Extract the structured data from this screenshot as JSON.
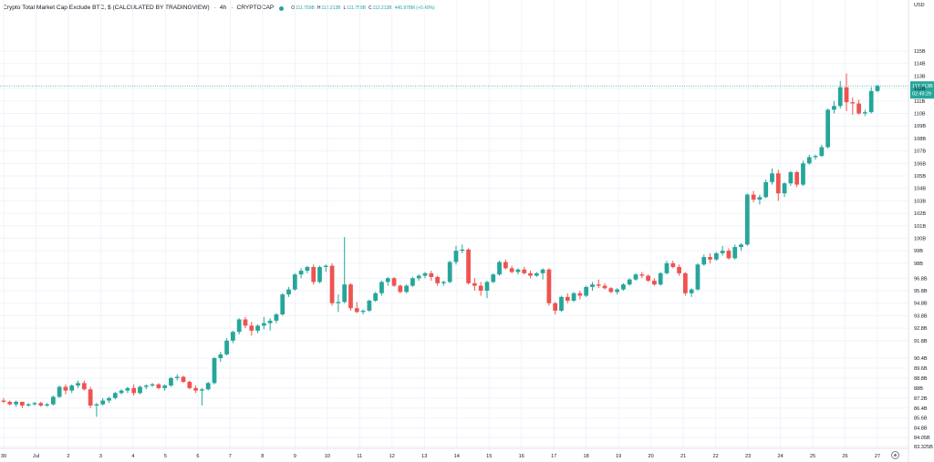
{
  "header": {
    "title": "Crypto Total Market Cap Exclude BTC, $ (CALCULATED BY TRADINGVIEW)",
    "timeframe": "4h",
    "exchange": "CRYPTOCAP",
    "ohlc": {
      "open_label": "O",
      "open": "111.759B",
      "high_label": "H",
      "high": "112.213B",
      "low_label": "L",
      "low": "111.759B",
      "close_label": "C",
      "close": "112.213B",
      "change": "445.978M (+0.40%)"
    }
  },
  "axis": {
    "currency_label": "USD"
  },
  "price_badge": {
    "price": "112.213B",
    "countdown": "02:49:29"
  },
  "colors": {
    "up": "#26a69a",
    "down": "#ef5350",
    "grid": "#f0f3fa",
    "axis_text": "#131722",
    "price_line": "#26a69a"
  },
  "chart_data": {
    "type": "candlestick",
    "timeframe": "4h",
    "y_axis": {
      "label": "USD",
      "range": [
        83.3,
        116.1
      ],
      "ticks": [
        "115B",
        "114B",
        "113B",
        "112B",
        "111B",
        "110B",
        "109B",
        "108B",
        "107B",
        "106B",
        "105B",
        "104B",
        "103B",
        "102B",
        "101B",
        "100B",
        "99B",
        "98B",
        "96.8B",
        "95.8B",
        "94.8B",
        "93.8B",
        "92.8B",
        "91.8B",
        "90.4B",
        "89.6B",
        "88.8B",
        "88B",
        "87.2B",
        "86.4B",
        "85.6B",
        "84.8B",
        "84.05B",
        "83.325B"
      ],
      "tick_values": [
        115,
        114,
        113,
        112,
        111,
        110,
        109,
        108,
        107,
        106,
        105,
        104,
        103,
        102,
        101,
        100,
        99,
        98,
        96.8,
        95.8,
        94.8,
        93.8,
        92.8,
        91.8,
        90.4,
        89.6,
        88.8,
        88,
        87.2,
        86.4,
        85.6,
        84.8,
        84.05,
        83.325
      ]
    },
    "x_axis": {
      "ticks": [
        "30",
        "Jul",
        "2",
        "3",
        "4",
        "5",
        "6",
        "7",
        "8",
        "9",
        "10",
        "11",
        "12",
        "13",
        "14",
        "15",
        "16",
        "17",
        "18",
        "19",
        "20",
        "21",
        "22",
        "23",
        "24",
        "25",
        "26",
        "27"
      ]
    },
    "last_price": 112.213,
    "countdown": "02:49:29",
    "grid": true,
    "candles": [
      [
        87.0,
        87.2,
        86.8,
        86.9
      ],
      [
        86.9,
        87.0,
        86.6,
        86.7
      ],
      [
        86.7,
        87.0,
        86.5,
        86.9
      ],
      [
        86.9,
        86.9,
        86.4,
        86.6
      ],
      [
        86.6,
        86.8,
        86.5,
        86.7
      ],
      [
        86.7,
        86.9,
        86.6,
        86.8
      ],
      [
        86.8,
        86.9,
        86.5,
        86.6
      ],
      [
        86.6,
        86.8,
        86.5,
        86.7
      ],
      [
        86.7,
        87.4,
        86.6,
        87.3
      ],
      [
        87.3,
        88.2,
        87.2,
        88.1
      ],
      [
        88.1,
        88.3,
        87.5,
        87.8
      ],
      [
        87.8,
        88.3,
        87.6,
        88.2
      ],
      [
        88.2,
        88.6,
        88.0,
        88.4
      ],
      [
        88.4,
        88.6,
        87.8,
        87.9
      ],
      [
        87.9,
        88.1,
        86.4,
        86.6
      ],
      [
        86.6,
        86.8,
        85.7,
        86.7
      ],
      [
        86.7,
        87.2,
        86.6,
        87.0
      ],
      [
        87.0,
        87.3,
        86.8,
        87.2
      ],
      [
        87.2,
        87.7,
        87.1,
        87.6
      ],
      [
        87.6,
        87.9,
        87.5,
        87.8
      ],
      [
        87.8,
        88.1,
        87.6,
        88.0
      ],
      [
        88.0,
        88.3,
        87.4,
        87.6
      ],
      [
        87.6,
        88.2,
        87.5,
        88.1
      ],
      [
        88.1,
        88.3,
        87.9,
        88.2
      ],
      [
        88.2,
        88.4,
        88.1,
        88.3
      ],
      [
        88.3,
        88.4,
        87.9,
        88.0
      ],
      [
        88.0,
        88.3,
        87.8,
        88.2
      ],
      [
        88.2,
        88.9,
        88.1,
        88.8
      ],
      [
        88.8,
        89.1,
        88.6,
        88.9
      ],
      [
        88.9,
        89.0,
        88.4,
        88.5
      ],
      [
        88.5,
        88.6,
        87.9,
        88.0
      ],
      [
        88.0,
        88.2,
        87.6,
        87.8
      ],
      [
        87.8,
        88.0,
        86.6,
        87.9
      ],
      [
        87.9,
        88.5,
        87.8,
        88.4
      ],
      [
        88.4,
        90.5,
        88.3,
        90.4
      ],
      [
        90.4,
        90.9,
        90.1,
        90.7
      ],
      [
        90.7,
        92.0,
        90.6,
        91.8
      ],
      [
        91.8,
        92.6,
        91.6,
        92.5
      ],
      [
        92.5,
        93.6,
        92.3,
        93.5
      ],
      [
        93.5,
        93.7,
        92.8,
        93.0
      ],
      [
        93.0,
        93.3,
        92.2,
        92.6
      ],
      [
        92.6,
        93.1,
        92.4,
        93.0
      ],
      [
        93.0,
        93.7,
        92.7,
        93.2
      ],
      [
        93.2,
        93.6,
        92.6,
        93.4
      ],
      [
        93.4,
        94.0,
        93.2,
        93.9
      ],
      [
        93.9,
        95.6,
        93.8,
        95.5
      ],
      [
        95.5,
        96.1,
        95.3,
        95.9
      ],
      [
        95.9,
        97.2,
        95.8,
        97.1
      ],
      [
        97.1,
        97.6,
        96.8,
        97.4
      ],
      [
        97.4,
        97.8,
        97.2,
        97.7
      ],
      [
        97.7,
        97.9,
        96.3,
        96.5
      ],
      [
        96.5,
        97.8,
        96.4,
        97.7
      ],
      [
        97.7,
        97.9,
        97.3,
        97.8
      ],
      [
        97.8,
        98.0,
        94.6,
        94.8
      ],
      [
        94.8,
        95.5,
        94.1,
        94.9
      ],
      [
        94.9,
        100.1,
        94.8,
        96.3
      ],
      [
        96.3,
        96.4,
        94.2,
        94.4
      ],
      [
        94.4,
        94.9,
        94.0,
        94.1
      ],
      [
        94.1,
        94.3,
        93.9,
        94.2
      ],
      [
        94.2,
        95.1,
        94.1,
        95.0
      ],
      [
        95.0,
        95.7,
        94.9,
        95.6
      ],
      [
        95.6,
        96.6,
        95.4,
        96.5
      ],
      [
        96.5,
        96.9,
        96.2,
        96.8
      ],
      [
        96.8,
        96.9,
        96.1,
        96.2
      ],
      [
        96.2,
        96.3,
        95.6,
        95.7
      ],
      [
        95.7,
        96.3,
        95.6,
        96.2
      ],
      [
        96.2,
        96.9,
        96.1,
        96.8
      ],
      [
        96.8,
        97.1,
        96.6,
        97.0
      ],
      [
        97.0,
        97.3,
        96.8,
        97.2
      ],
      [
        97.2,
        97.4,
        96.6,
        96.9
      ],
      [
        96.9,
        97.0,
        96.2,
        96.4
      ],
      [
        96.4,
        96.6,
        96.2,
        96.5
      ],
      [
        96.5,
        98.2,
        96.4,
        98.1
      ],
      [
        98.1,
        99.4,
        97.9,
        99.0
      ],
      [
        99.0,
        99.5,
        98.8,
        99.1
      ],
      [
        99.1,
        99.2,
        96.3,
        96.4
      ],
      [
        96.4,
        96.8,
        95.8,
        96.2
      ],
      [
        96.2,
        96.5,
        95.4,
        95.8
      ],
      [
        95.8,
        96.6,
        95.2,
        96.5
      ],
      [
        96.5,
        97.2,
        96.4,
        97.1
      ],
      [
        97.1,
        98.2,
        97.0,
        98.1
      ],
      [
        98.1,
        98.3,
        97.5,
        97.6
      ],
      [
        97.6,
        97.8,
        97.2,
        97.3
      ],
      [
        97.3,
        97.6,
        97.1,
        97.5
      ],
      [
        97.5,
        97.7,
        97.1,
        97.2
      ],
      [
        97.2,
        97.4,
        96.8,
        97.0
      ],
      [
        97.0,
        97.3,
        96.9,
        97.2
      ],
      [
        97.2,
        97.6,
        96.7,
        97.5
      ],
      [
        97.5,
        97.6,
        94.6,
        94.8
      ],
      [
        94.8,
        94.9,
        93.9,
        94.2
      ],
      [
        94.2,
        95.4,
        94.1,
        95.3
      ],
      [
        95.3,
        95.6,
        94.8,
        95.0
      ],
      [
        95.0,
        95.7,
        94.9,
        95.6
      ],
      [
        95.6,
        95.8,
        95.1,
        95.4
      ],
      [
        95.4,
        96.2,
        95.3,
        96.1
      ],
      [
        96.1,
        96.5,
        95.8,
        96.3
      ],
      [
        96.3,
        96.7,
        96.0,
        96.2
      ],
      [
        96.2,
        96.4,
        95.9,
        96.0
      ],
      [
        96.0,
        96.1,
        95.6,
        95.7
      ],
      [
        95.7,
        96.0,
        95.5,
        95.9
      ],
      [
        95.9,
        96.4,
        95.8,
        96.3
      ],
      [
        96.3,
        96.8,
        96.2,
        96.7
      ],
      [
        96.7,
        97.2,
        96.6,
        97.1
      ],
      [
        97.1,
        97.3,
        96.8,
        97.0
      ],
      [
        97.0,
        97.1,
        96.5,
        96.6
      ],
      [
        96.6,
        96.8,
        96.2,
        96.3
      ],
      [
        96.3,
        97.3,
        96.2,
        97.2
      ],
      [
        97.2,
        98.2,
        97.1,
        98.0
      ],
      [
        98.0,
        98.2,
        97.6,
        97.7
      ],
      [
        97.7,
        97.9,
        97.0,
        97.2
      ],
      [
        97.2,
        97.3,
        95.4,
        95.6
      ],
      [
        95.6,
        96.0,
        95.3,
        95.9
      ],
      [
        95.9,
        98.0,
        95.8,
        97.9
      ],
      [
        97.9,
        98.7,
        97.8,
        98.5
      ],
      [
        98.5,
        98.8,
        98.0,
        98.3
      ],
      [
        98.3,
        98.9,
        98.2,
        98.8
      ],
      [
        98.8,
        99.4,
        98.6,
        99.0
      ],
      [
        99.0,
        99.2,
        98.3,
        98.4
      ],
      [
        98.4,
        99.5,
        98.3,
        99.3
      ],
      [
        99.3,
        99.6,
        99.0,
        99.5
      ],
      [
        99.5,
        103.6,
        99.4,
        103.5
      ],
      [
        103.5,
        103.8,
        102.9,
        103.1
      ],
      [
        103.1,
        103.5,
        102.7,
        103.3
      ],
      [
        103.3,
        104.7,
        103.2,
        104.5
      ],
      [
        104.5,
        105.6,
        104.3,
        105.2
      ],
      [
        105.2,
        105.5,
        103.0,
        103.6
      ],
      [
        103.6,
        104.5,
        103.3,
        104.4
      ],
      [
        104.4,
        105.4,
        104.2,
        105.3
      ],
      [
        105.3,
        105.4,
        104.1,
        104.3
      ],
      [
        104.3,
        106.2,
        104.2,
        106.0
      ],
      [
        106.0,
        106.7,
        105.9,
        106.5
      ],
      [
        106.5,
        106.7,
        106.3,
        106.6
      ],
      [
        106.6,
        107.5,
        106.5,
        107.3
      ],
      [
        107.3,
        110.4,
        107.2,
        110.3
      ],
      [
        110.3,
        111.0,
        110.0,
        110.6
      ],
      [
        110.6,
        112.6,
        110.4,
        112.1
      ],
      [
        112.1,
        113.2,
        110.2,
        110.9
      ],
      [
        110.9,
        111.3,
        109.9,
        110.8
      ],
      [
        110.8,
        111.1,
        109.9,
        110.0
      ],
      [
        110.0,
        110.3,
        109.8,
        110.1
      ],
      [
        110.1,
        112.1,
        110.0,
        111.8
      ],
      [
        111.8,
        112.3,
        111.7,
        112.2
      ]
    ]
  }
}
